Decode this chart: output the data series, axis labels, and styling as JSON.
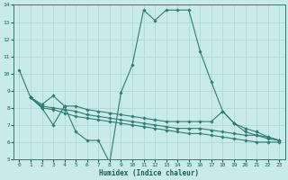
{
  "xlabel": "Humidex (Indice chaleur)",
  "background_color": "#c8eaea",
  "grid_color": "#b0d8d5",
  "line_color": "#2e7d72",
  "xlim": [
    -0.5,
    23.5
  ],
  "ylim": [
    5,
    14
  ],
  "yticks": [
    5,
    6,
    7,
    8,
    9,
    10,
    11,
    12,
    13,
    14
  ],
  "xticks": [
    0,
    1,
    2,
    3,
    4,
    5,
    6,
    7,
    8,
    9,
    10,
    11,
    12,
    13,
    14,
    15,
    16,
    17,
    18,
    19,
    20,
    21,
    22,
    23
  ],
  "lines": [
    {
      "x": [
        0,
        1,
        2,
        3,
        4,
        5,
        6,
        7,
        8,
        9,
        10,
        11,
        12,
        13,
        14,
        15,
        16,
        17,
        18,
        19,
        20,
        21,
        22,
        23
      ],
      "y": [
        10.2,
        8.6,
        8.0,
        7.0,
        8.1,
        6.6,
        6.1,
        6.1,
        4.8,
        8.9,
        10.5,
        13.7,
        13.1,
        13.7,
        13.7,
        13.7,
        11.3,
        9.5,
        7.8,
        7.1,
        6.6,
        6.4,
        6.2,
        6.1
      ]
    },
    {
      "x": [
        1,
        2,
        3,
        4,
        5,
        6,
        7,
        8,
        9,
        10,
        11,
        12,
        13,
        14,
        15,
        16,
        17,
        18,
        19,
        20,
        21,
        22,
        23
      ],
      "y": [
        8.6,
        8.2,
        8.7,
        8.1,
        8.1,
        7.9,
        7.8,
        7.7,
        7.6,
        7.5,
        7.4,
        7.3,
        7.2,
        7.2,
        7.2,
        7.2,
        7.2,
        7.8,
        7.1,
        6.8,
        6.6,
        6.3,
        6.1
      ]
    },
    {
      "x": [
        1,
        2,
        3,
        4,
        5,
        6,
        7,
        8,
        9,
        10,
        11,
        12,
        13,
        14,
        15,
        16,
        17,
        18,
        19,
        20,
        21,
        22,
        23
      ],
      "y": [
        8.6,
        8.1,
        8.0,
        7.9,
        7.8,
        7.6,
        7.5,
        7.4,
        7.3,
        7.2,
        7.1,
        7.0,
        6.9,
        6.8,
        6.8,
        6.8,
        6.7,
        6.6,
        6.5,
        6.4,
        6.4,
        6.3,
        6.1
      ]
    },
    {
      "x": [
        1,
        2,
        3,
        4,
        5,
        6,
        7,
        8,
        9,
        10,
        11,
        12,
        13,
        14,
        15,
        16,
        17,
        18,
        19,
        20,
        21,
        22,
        23
      ],
      "y": [
        8.6,
        8.0,
        7.9,
        7.7,
        7.5,
        7.4,
        7.3,
        7.2,
        7.1,
        7.0,
        6.9,
        6.8,
        6.7,
        6.6,
        6.5,
        6.5,
        6.4,
        6.3,
        6.2,
        6.1,
        6.0,
        6.0,
        6.0
      ]
    }
  ]
}
